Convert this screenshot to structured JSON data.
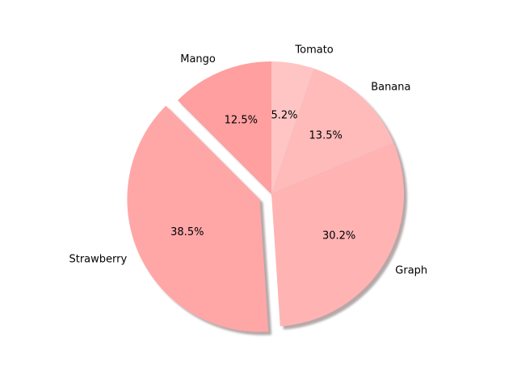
{
  "chart_data": {
    "type": "pie",
    "title": "",
    "start_angle_deg": 90,
    "direction": "counterclockwise",
    "shadow": true,
    "slices": [
      {
        "label": "Mango",
        "value": 12.5,
        "pct_label": "12.5%",
        "color": "#ff9f9f",
        "exploded": false
      },
      {
        "label": "Strawberry",
        "value": 38.5,
        "pct_label": "38.5%",
        "color": "#ffa7a7",
        "exploded": true
      },
      {
        "label": "Graph",
        "value": 30.2,
        "pct_label": "30.2%",
        "color": "#ffb3b3",
        "exploded": false
      },
      {
        "label": "Banana",
        "value": 13.5,
        "pct_label": "13.5%",
        "color": "#ffbaba",
        "exploded": false
      },
      {
        "label": "Tomato",
        "value": 5.2,
        "pct_label": "5.2%",
        "color": "#ffc5c5",
        "exploded": false
      }
    ]
  }
}
